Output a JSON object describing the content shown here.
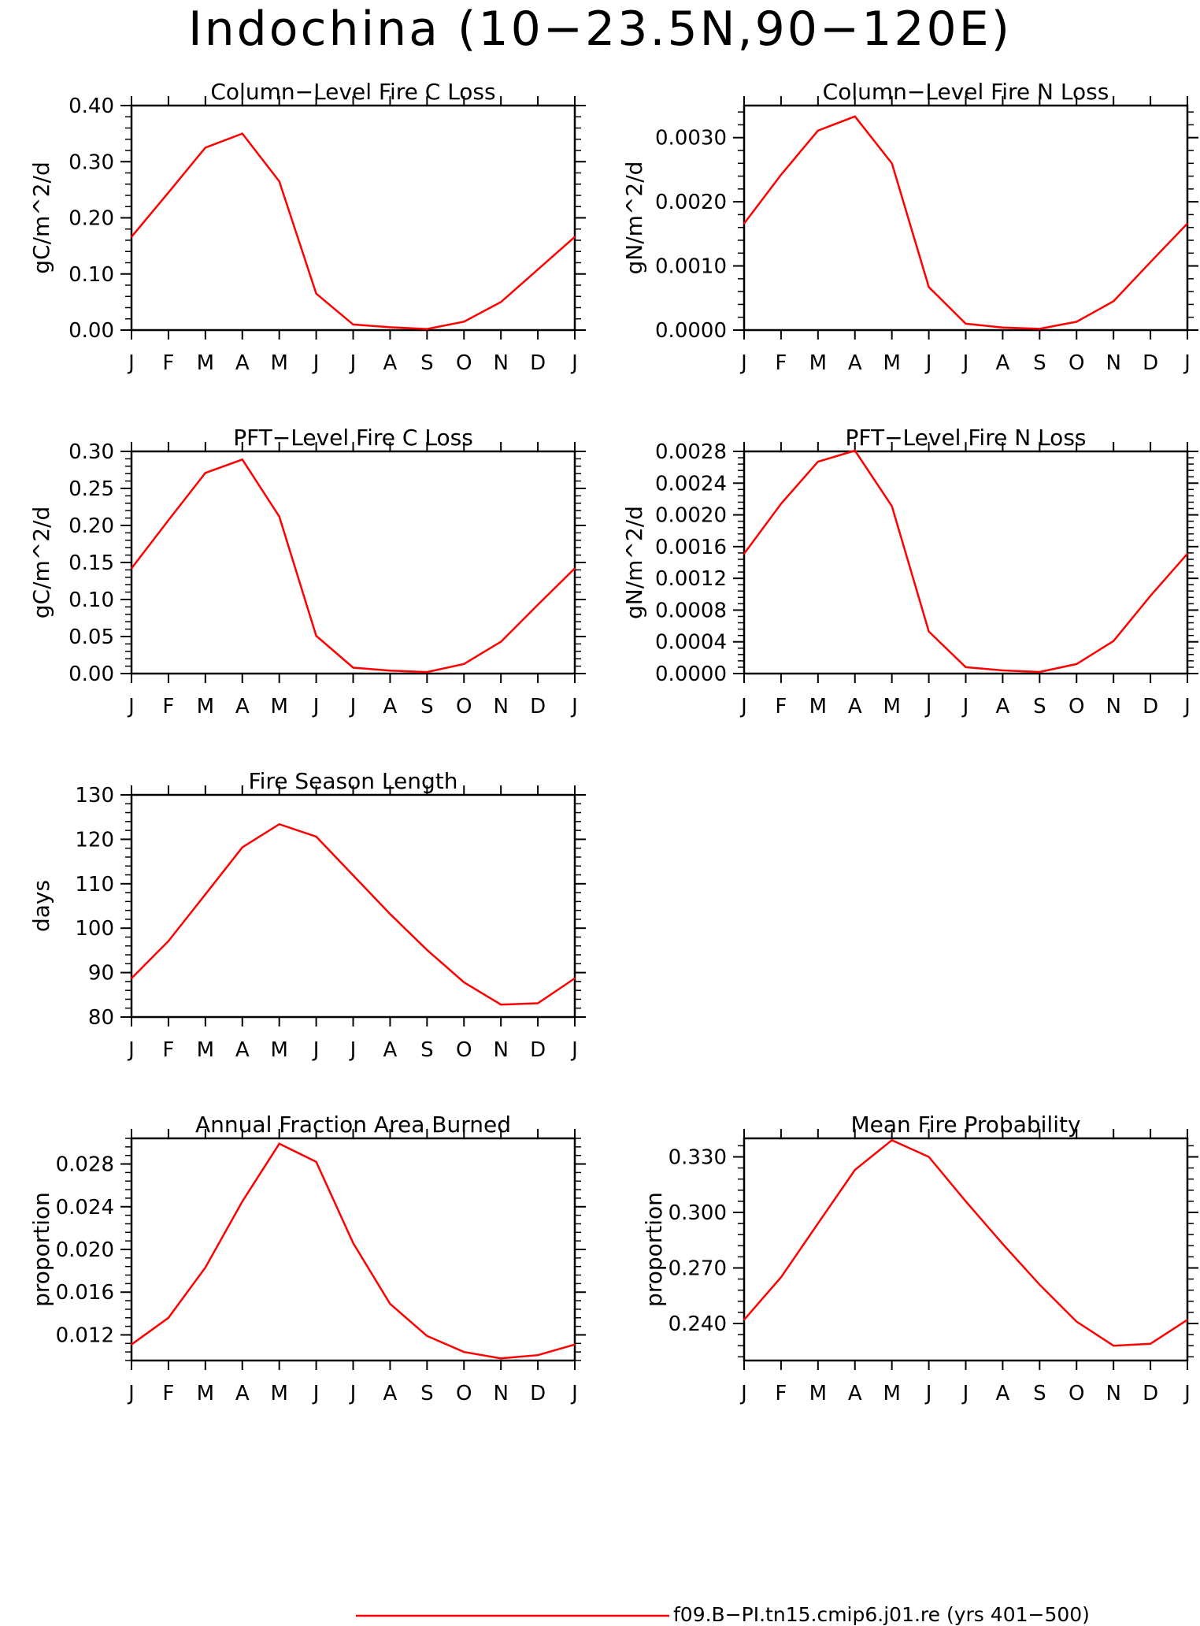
{
  "figure": {
    "title": "Indochina (10−23.5N,90−120E)",
    "line_color": "#ff0000",
    "legend_label": "f09.B−PI.tn15.cmip6.j01.re (yrs 401−500)"
  },
  "chart_data": [
    {
      "type": "line",
      "title": "Column−Level Fire C Loss",
      "ylabel": "gC/m^2/d",
      "categories": [
        "J",
        "F",
        "M",
        "A",
        "M",
        "J",
        "J",
        "A",
        "S",
        "O",
        "N",
        "D",
        "J"
      ],
      "ylim": [
        0,
        0.4
      ],
      "yticks": [
        "0.00",
        "0.10",
        "0.20",
        "0.30",
        "0.40"
      ],
      "series": [
        {
          "values": [
            0.166,
            0.245,
            0.325,
            0.35,
            0.265,
            0.065,
            0.01,
            0.005,
            0.002,
            0.015,
            0.05,
            0.108,
            0.166
          ]
        }
      ]
    },
    {
      "type": "line",
      "title": "Column−Level Fire N Loss",
      "ylabel": "gN/m^2/d",
      "categories": [
        "J",
        "F",
        "M",
        "A",
        "M",
        "J",
        "J",
        "A",
        "S",
        "O",
        "N",
        "D",
        "J"
      ],
      "ylim": [
        0,
        0.0035
      ],
      "yticks": [
        "0.0000",
        "0.0010",
        "0.0020",
        "0.0030"
      ],
      "series": [
        {
          "values": [
            0.00166,
            0.00242,
            0.00311,
            0.00333,
            0.0026,
            0.00067,
            0.0001,
            4e-05,
            2e-05,
            0.00013,
            0.00045,
            0.00106,
            0.00166
          ]
        }
      ]
    },
    {
      "type": "line",
      "title": "PFT−Level Fire C Loss",
      "ylabel": "gC/m^2/d",
      "categories": [
        "J",
        "F",
        "M",
        "A",
        "M",
        "J",
        "J",
        "A",
        "S",
        "O",
        "N",
        "D",
        "J"
      ],
      "ylim": [
        0,
        0.3
      ],
      "yticks": [
        "0.00",
        "0.05",
        "0.10",
        "0.15",
        "0.20",
        "0.25",
        "0.30"
      ],
      "series": [
        {
          "values": [
            0.142,
            0.207,
            0.271,
            0.289,
            0.212,
            0.051,
            0.008,
            0.004,
            0.002,
            0.013,
            0.043,
            0.093,
            0.142
          ]
        }
      ]
    },
    {
      "type": "line",
      "title": "PFT−Level Fire N Loss",
      "ylabel": "gN/m^2/d",
      "categories": [
        "J",
        "F",
        "M",
        "A",
        "M",
        "J",
        "J",
        "A",
        "S",
        "O",
        "N",
        "D",
        "J"
      ],
      "ylim": [
        0,
        0.0028
      ],
      "yticks": [
        "0.0000",
        "0.0004",
        "0.0008",
        "0.0012",
        "0.0016",
        "0.0020",
        "0.0024",
        "0.0028"
      ],
      "series": [
        {
          "values": [
            0.00151,
            0.00214,
            0.00267,
            0.00281,
            0.00211,
            0.00053,
            8e-05,
            4e-05,
            2e-05,
            0.00012,
            0.00041,
            0.00098,
            0.00151
          ]
        }
      ]
    },
    {
      "type": "line",
      "title": "Fire Season Length",
      "ylabel": "days",
      "categories": [
        "J",
        "F",
        "M",
        "A",
        "M",
        "J",
        "J",
        "A",
        "S",
        "O",
        "N",
        "D",
        "J"
      ],
      "ylim": [
        80,
        130
      ],
      "yticks": [
        "80",
        "90",
        "100",
        "110",
        "120",
        "130"
      ],
      "series": [
        {
          "values": [
            88.7,
            97.1,
            107.6,
            118.2,
            123.4,
            120.6,
            111.9,
            103.2,
            95.1,
            87.8,
            82.8,
            83.1,
            88.7
          ]
        }
      ]
    },
    {
      "type": "line",
      "title": "Annual Fraction Area Burned",
      "ylabel": "proportion",
      "categories": [
        "J",
        "F",
        "M",
        "A",
        "M",
        "J",
        "J",
        "A",
        "S",
        "O",
        "N",
        "D",
        "J"
      ],
      "ylim": [
        0.0096,
        0.0304
      ],
      "yticks": [
        "0.012",
        "0.016",
        "0.020",
        "0.024",
        "0.028"
      ],
      "series": [
        {
          "values": [
            0.0111,
            0.0136,
            0.0183,
            0.0245,
            0.0299,
            0.0282,
            0.0206,
            0.0149,
            0.0119,
            0.0104,
            0.0098,
            0.0101,
            0.0111
          ]
        }
      ]
    },
    {
      "type": "line",
      "title": "Mean Fire Probability",
      "ylabel": "proportion",
      "categories": [
        "J",
        "F",
        "M",
        "A",
        "M",
        "J",
        "J",
        "A",
        "S",
        "O",
        "N",
        "D",
        "J"
      ],
      "ylim": [
        0.22,
        0.34
      ],
      "yticks": [
        "0.240",
        "0.270",
        "0.300",
        "0.330"
      ],
      "series": [
        {
          "values": [
            0.242,
            0.265,
            0.294,
            0.323,
            0.339,
            0.33,
            0.306,
            0.283,
            0.261,
            0.241,
            0.228,
            0.229,
            0.242
          ]
        }
      ]
    }
  ]
}
